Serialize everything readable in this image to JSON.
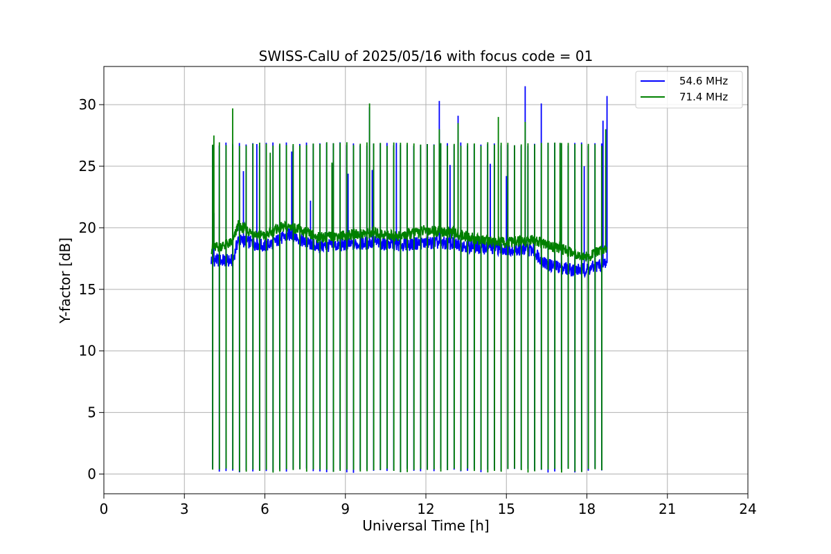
{
  "chart_data": {
    "type": "line",
    "title": "SWISS-CalU of 2025/05/16 with focus code = 01",
    "xlabel": "Universal Time [h]",
    "ylabel": "Y-factor [dB]",
    "xlim": [
      0,
      24
    ],
    "ylim": [
      -1.6,
      33.1
    ],
    "xticks": [
      0,
      3,
      6,
      9,
      12,
      15,
      18,
      21,
      24
    ],
    "xtick_labels": [
      "0",
      "3",
      "6",
      "9",
      "12",
      "15",
      "18",
      "21",
      "24"
    ],
    "yticks": [
      0,
      5,
      10,
      15,
      20,
      25,
      30
    ],
    "ytick_labels": [
      "0",
      "5",
      "10",
      "15",
      "20",
      "25",
      "30"
    ],
    "grid": true,
    "legend_position": "top-right",
    "x_start": 4.0,
    "x_end": 18.75,
    "calibration_cycle_hours": 0.25,
    "calibration_dip_value": 0.1,
    "calibration_peak_value": 26.8,
    "series": [
      {
        "name": "54.6 MHz",
        "color": "#0000ff",
        "baseline": [
          [
            4.0,
            17.4
          ],
          [
            4.8,
            17.3
          ],
          [
            5.0,
            19.0
          ],
          [
            5.5,
            18.8
          ],
          [
            6.0,
            18.5
          ],
          [
            6.5,
            19.0
          ],
          [
            7.0,
            19.5
          ],
          [
            7.5,
            18.8
          ],
          [
            8.0,
            18.5
          ],
          [
            9.0,
            18.6
          ],
          [
            10.0,
            18.8
          ],
          [
            11.0,
            18.6
          ],
          [
            12.0,
            18.8
          ],
          [
            13.0,
            18.7
          ],
          [
            14.0,
            18.4
          ],
          [
            15.0,
            18.3
          ],
          [
            16.0,
            18.2
          ],
          [
            16.5,
            17.0
          ],
          [
            17.5,
            16.6
          ],
          [
            18.0,
            16.6
          ],
          [
            18.75,
            17.2
          ]
        ],
        "spikes": [
          [
            4.1,
            21.2
          ],
          [
            5.2,
            24.6
          ],
          [
            5.7,
            26.8
          ],
          [
            7.0,
            26.2
          ],
          [
            7.7,
            22.2
          ],
          [
            8.5,
            25.2
          ],
          [
            9.1,
            24.4
          ],
          [
            9.9,
            29.8
          ],
          [
            10.0,
            24.7
          ],
          [
            10.9,
            26.9
          ],
          [
            12.5,
            30.3
          ],
          [
            12.9,
            25.1
          ],
          [
            13.2,
            29.1
          ],
          [
            14.4,
            25.2
          ],
          [
            15.0,
            24.2
          ],
          [
            15.7,
            31.5
          ],
          [
            16.3,
            30.1
          ],
          [
            16.8,
            25.1
          ],
          [
            17.9,
            25.0
          ],
          [
            18.6,
            28.7
          ],
          [
            18.75,
            30.7
          ]
        ]
      },
      {
        "name": "71.4 MHz",
        "color": "#008000",
        "baseline": [
          [
            4.0,
            18.3
          ],
          [
            4.8,
            18.8
          ],
          [
            5.0,
            20.2
          ],
          [
            5.5,
            19.6
          ],
          [
            6.0,
            19.3
          ],
          [
            6.5,
            20.0
          ],
          [
            7.0,
            20.1
          ],
          [
            7.5,
            19.6
          ],
          [
            8.0,
            19.2
          ],
          [
            9.0,
            19.4
          ],
          [
            10.0,
            19.6
          ],
          [
            11.0,
            19.3
          ],
          [
            12.0,
            19.8
          ],
          [
            13.0,
            19.6
          ],
          [
            14.0,
            19.0
          ],
          [
            15.0,
            18.8
          ],
          [
            16.0,
            19.0
          ],
          [
            16.5,
            18.6
          ],
          [
            17.5,
            18.0
          ],
          [
            18.0,
            17.6
          ],
          [
            18.75,
            18.4
          ]
        ],
        "spikes": [
          [
            4.1,
            27.5
          ],
          [
            4.8,
            29.7
          ],
          [
            6.2,
            26.1
          ],
          [
            7.3,
            26.5
          ],
          [
            8.5,
            25.3
          ],
          [
            9.9,
            30.1
          ],
          [
            10.8,
            26.5
          ],
          [
            12.5,
            28.0
          ],
          [
            13.2,
            28.5
          ],
          [
            14.7,
            29.0
          ],
          [
            15.7,
            28.6
          ],
          [
            17.0,
            26.9
          ],
          [
            18.7,
            28.0
          ]
        ]
      }
    ]
  }
}
